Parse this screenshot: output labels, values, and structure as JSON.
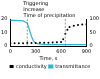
{
  "chart_data": {
    "type": "scatter",
    "x_label": "Time, s",
    "xlim": [
      0,
      900
    ],
    "xticks": [
      0,
      300,
      600,
      900
    ],
    "ylim": [
      0,
      20
    ],
    "yticks": [
      0,
      10,
      20
    ],
    "y2lim": [
      0,
      100
    ],
    "y2ticks": [
      0,
      50,
      100
    ],
    "legend": "bottom",
    "grid": false,
    "annotations": [
      {
        "x": 200,
        "text": [
          "Triggering",
          "Increase"
        ]
      },
      {
        "x": 650,
        "text": [
          "Time of precipitation"
        ]
      }
    ],
    "series": [
      {
        "name": "conductivity",
        "color": "#000000",
        "type": "scatter",
        "marker": "circle",
        "x": [
          0,
          50,
          100,
          150,
          200,
          250,
          300,
          350,
          400,
          450,
          500,
          550,
          600,
          625,
          650,
          675,
          700,
          750,
          800,
          850,
          900
        ],
        "values": [
          2,
          2,
          2.1,
          2.1,
          2.2,
          2.3,
          2.3,
          2.4,
          2.4,
          2.5,
          2.6,
          2.7,
          3,
          5,
          9,
          12,
          14,
          15,
          15.5,
          16,
          16.2
        ]
      },
      {
        "name": "transmittance",
        "color": "#29b6d8",
        "type": "line",
        "axis": "y2",
        "line_style": "solid",
        "x": [
          0,
          50,
          100,
          150,
          200,
          225,
          250,
          275,
          300,
          350,
          400,
          500,
          600,
          700,
          800,
          900
        ],
        "values": [
          95,
          95,
          94,
          93,
          85,
          60,
          35,
          18,
          10,
          7,
          6,
          5,
          5,
          5,
          5,
          5
        ]
      }
    ]
  }
}
